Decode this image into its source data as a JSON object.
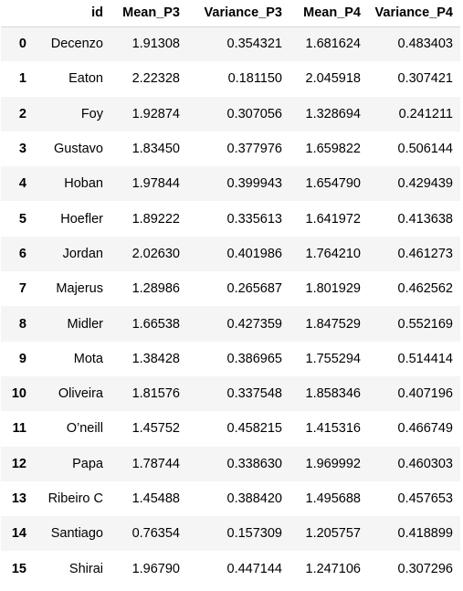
{
  "table": {
    "index_header": "",
    "columns": [
      "id",
      "Mean_P3",
      "Variance_P3",
      "Mean_P4",
      "Variance_P4"
    ],
    "rows": [
      {
        "index": "0",
        "cells": [
          "Decenzo",
          "1.91308",
          "0.354321",
          "1.681624",
          "0.483403"
        ]
      },
      {
        "index": "1",
        "cells": [
          "Eaton",
          "2.22328",
          "0.181150",
          "2.045918",
          "0.307421"
        ]
      },
      {
        "index": "2",
        "cells": [
          "Foy",
          "1.92874",
          "0.307056",
          "1.328694",
          "0.241211"
        ]
      },
      {
        "index": "3",
        "cells": [
          "Gustavo",
          "1.83450",
          "0.377976",
          "1.659822",
          "0.506144"
        ]
      },
      {
        "index": "4",
        "cells": [
          "Hoban",
          "1.97844",
          "0.399943",
          "1.654790",
          "0.429439"
        ]
      },
      {
        "index": "5",
        "cells": [
          "Hoefler",
          "1.89222",
          "0.335613",
          "1.641972",
          "0.413638"
        ]
      },
      {
        "index": "6",
        "cells": [
          "Jordan",
          "2.02630",
          "0.401986",
          "1.764210",
          "0.461273"
        ]
      },
      {
        "index": "7",
        "cells": [
          "Majerus",
          "1.28986",
          "0.265687",
          "1.801929",
          "0.462562"
        ]
      },
      {
        "index": "8",
        "cells": [
          "Midler",
          "1.66538",
          "0.427359",
          "1.847529",
          "0.552169"
        ]
      },
      {
        "index": "9",
        "cells": [
          "Mota",
          "1.38428",
          "0.386965",
          "1.755294",
          "0.514414"
        ]
      },
      {
        "index": "10",
        "cells": [
          "Oliveira",
          "1.81576",
          "0.337548",
          "1.858346",
          "0.407196"
        ]
      },
      {
        "index": "11",
        "cells": [
          "O’neill",
          "1.45752",
          "0.458215",
          "1.415316",
          "0.466749"
        ]
      },
      {
        "index": "12",
        "cells": [
          "Papa",
          "1.78744",
          "0.338630",
          "1.969992",
          "0.460303"
        ]
      },
      {
        "index": "13",
        "cells": [
          "Ribeiro C",
          "1.45488",
          "0.388420",
          "1.495688",
          "0.457653"
        ]
      },
      {
        "index": "14",
        "cells": [
          "Santiago",
          "0.76354",
          "0.157309",
          "1.205757",
          "0.418899"
        ]
      },
      {
        "index": "15",
        "cells": [
          "Shirai",
          "1.96790",
          "0.447144",
          "1.247106",
          "0.307296"
        ]
      }
    ]
  }
}
